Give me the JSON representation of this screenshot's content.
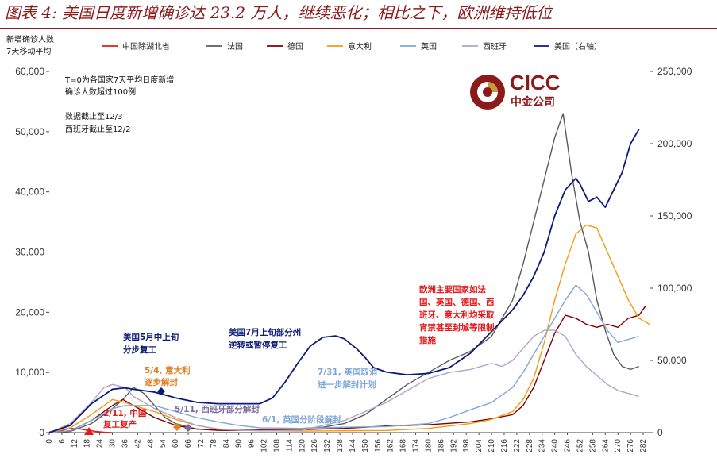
{
  "title": "图表 4: 美国日度新增确诊达 23.2 万人，继续恶化；相比之下，欧洲维持低位",
  "logo": {
    "name": "CICC",
    "subtitle": "中金公司"
  },
  "colors": {
    "brand": "#8b1a1a",
    "rule": "#8b1a1a"
  },
  "chart_data": {
    "type": "line",
    "ylabel_left": "新增确诊人数\n7天移动平均",
    "ylim_left": [
      0,
      60000
    ],
    "ylim_right": [
      0,
      250000
    ],
    "yticks_left": [
      "0",
      "10,000",
      "20,000",
      "30,000",
      "40,000",
      "50,000",
      "60,000"
    ],
    "yticks_right": [
      "0",
      "50,000",
      "100,000",
      "150,000",
      "200,000",
      "250,000"
    ],
    "x_range": [
      0,
      285
    ],
    "xticks": [
      "0",
      "6",
      "12",
      "18",
      "24",
      "30",
      "36",
      "42",
      "48",
      "54",
      "60",
      "66",
      "72",
      "78",
      "84",
      "90",
      "96",
      "102",
      "108",
      "114",
      "120",
      "126",
      "132",
      "138",
      "144",
      "150",
      "156",
      "162",
      "168",
      "174",
      "180",
      "186",
      "192",
      "198",
      "204",
      "210",
      "216",
      "222",
      "228",
      "234",
      "240",
      "246",
      "252",
      "258",
      "264",
      "270",
      "276",
      "282"
    ],
    "notes": [
      "T=0为各国家7天平均日度新增",
      "确诊人数超过100例",
      "数据截止至12/3",
      "西班牙截止至12/2"
    ],
    "series": [
      {
        "name": "中国除湖北省",
        "color": "#e31a1c",
        "axis": "left",
        "x": [
          0,
          5,
          10,
          15,
          18,
          22,
          26,
          30
        ],
        "y": [
          100,
          300,
          700,
          600,
          400,
          200,
          60,
          0
        ]
      },
      {
        "name": "法国",
        "color": "#5a5a5a",
        "axis": "left",
        "x": [
          0,
          10,
          20,
          30,
          35,
          40,
          45,
          50,
          55,
          60,
          70,
          80,
          90,
          100,
          110,
          120,
          130,
          140,
          150,
          160,
          170,
          180,
          190,
          200,
          210,
          220,
          225,
          230,
          235,
          240,
          244,
          248,
          252,
          256,
          260,
          264,
          268,
          272,
          276,
          280
        ],
        "y": [
          0,
          200,
          1500,
          4000,
          5500,
          7500,
          6500,
          4500,
          2500,
          1500,
          600,
          400,
          400,
          500,
          600,
          700,
          900,
          1500,
          3000,
          5500,
          8000,
          10000,
          12000,
          13500,
          16000,
          22000,
          28000,
          35000,
          42000,
          49000,
          53000,
          43000,
          35000,
          30000,
          22000,
          17000,
          13000,
          11000,
          10500,
          11000
        ]
      },
      {
        "name": "德国",
        "color": "#7f0000",
        "axis": "left",
        "x": [
          0,
          10,
          20,
          30,
          35,
          40,
          50,
          60,
          70,
          80,
          90,
          100,
          120,
          140,
          160,
          180,
          200,
          210,
          220,
          225,
          230,
          235,
          240,
          245,
          250,
          255,
          260,
          265,
          270,
          275,
          280,
          283
        ],
        "y": [
          0,
          300,
          2000,
          4500,
          5500,
          4500,
          2500,
          1200,
          600,
          400,
          350,
          400,
          500,
          700,
          1100,
          1300,
          1800,
          2300,
          3000,
          4500,
          7500,
          12000,
          16500,
          19500,
          19000,
          18000,
          17500,
          18000,
          17500,
          19000,
          19500,
          21000
        ]
      },
      {
        "name": "意大利",
        "color": "#f39c12",
        "axis": "left",
        "x": [
          0,
          10,
          20,
          30,
          36,
          40,
          50,
          60,
          70,
          80,
          90,
          100,
          120,
          140,
          160,
          180,
          200,
          210,
          220,
          225,
          230,
          235,
          240,
          245,
          250,
          255,
          260,
          265,
          270,
          275,
          280,
          285
        ],
        "y": [
          0,
          800,
          3000,
          5500,
          5000,
          4500,
          3500,
          2200,
          1200,
          600,
          400,
          300,
          250,
          300,
          350,
          700,
          1500,
          2200,
          3500,
          5500,
          9000,
          15000,
          22000,
          28000,
          33000,
          34500,
          34000,
          30000,
          26000,
          22000,
          19000,
          18000
        ]
      },
      {
        "name": "英国",
        "color": "#7ea6d8",
        "axis": "left",
        "x": [
          0,
          10,
          20,
          30,
          36,
          40,
          50,
          60,
          70,
          80,
          90,
          100,
          120,
          140,
          160,
          180,
          190,
          200,
          210,
          220,
          225,
          230,
          235,
          240,
          245,
          250,
          255,
          260,
          265,
          270,
          275,
          280
        ],
        "y": [
          0,
          300,
          2000,
          4000,
          4500,
          4500,
          4500,
          3500,
          2500,
          1800,
          1200,
          800,
          700,
          900,
          1000,
          1500,
          2500,
          3800,
          5000,
          7500,
          10000,
          13000,
          16000,
          19000,
          22000,
          24500,
          23000,
          20000,
          17000,
          15000,
          15500,
          16000
        ]
      },
      {
        "name": "西班牙",
        "color": "#b3a2cc",
        "axis": "left",
        "x": [
          0,
          10,
          20,
          26,
          30,
          36,
          40,
          50,
          60,
          70,
          80,
          90,
          100,
          120,
          140,
          150,
          160,
          170,
          180,
          190,
          200,
          205,
          210,
          215,
          220,
          225,
          230,
          235,
          240,
          245,
          250,
          255,
          260,
          265,
          270,
          275,
          280
        ],
        "y": [
          0,
          1500,
          5000,
          7500,
          8000,
          7500,
          6000,
          4000,
          2500,
          1200,
          600,
          400,
          300,
          400,
          2000,
          3500,
          5000,
          7000,
          9000,
          10000,
          10500,
          11000,
          11500,
          11000,
          12000,
          14000,
          16000,
          17000,
          17000,
          16000,
          13000,
          11000,
          9500,
          8000,
          7000,
          6500,
          6000
        ]
      },
      {
        "name": "美国（右轴）",
        "color": "#0a1a7a",
        "axis": "right",
        "x": [
          0,
          10,
          20,
          30,
          36,
          40,
          50,
          60,
          70,
          80,
          90,
          100,
          106,
          112,
          118,
          124,
          130,
          136,
          140,
          146,
          150,
          154,
          160,
          170,
          180,
          190,
          200,
          210,
          220,
          225,
          230,
          235,
          240,
          245,
          250,
          252,
          256,
          260,
          264,
          268,
          272,
          276,
          280
        ],
        "y": [
          0,
          5000,
          20000,
          30000,
          31000,
          30000,
          28000,
          24000,
          21000,
          20000,
          20000,
          20000,
          24000,
          35000,
          48000,
          60000,
          66000,
          67000,
          65000,
          58000,
          52000,
          45000,
          42000,
          40000,
          41000,
          45000,
          55000,
          70000,
          85000,
          95000,
          108000,
          125000,
          150000,
          168000,
          176000,
          172000,
          160000,
          163000,
          156000,
          168000,
          180000,
          200000,
          210000
        ]
      }
    ],
    "annotations": [
      {
        "color": "#e31a1c",
        "lines": [
          "欧洲主要国家如法",
          "国、英国、德国、西",
          "班牙、意大利均采取",
          "宵禁甚至封城等限制",
          "措施"
        ]
      },
      {
        "color": "#0a1a7a",
        "lines": [
          "美国5月中上旬",
          "分步复工"
        ]
      },
      {
        "color": "#0a1a7a",
        "lines": [
          "美国7月上旬部分州",
          "逆转或暂停复工"
        ]
      },
      {
        "color": "#e67e22",
        "lines": [
          "5/4, 意大利",
          "逐步解封"
        ]
      },
      {
        "color": "#7ea6d8",
        "lines": [
          "7/31, 英国取消",
          "进一步解封计划"
        ]
      },
      {
        "color": "#7c6a9e",
        "lines": [
          "5/11, 西班牙部分解封"
        ]
      },
      {
        "color": "#7ea6d8",
        "lines": [
          "6/1, 英国分阶段解封"
        ]
      },
      {
        "color": "#e31a1c",
        "lines": [
          "2/11, 中国",
          "复工复产"
        ]
      }
    ]
  }
}
